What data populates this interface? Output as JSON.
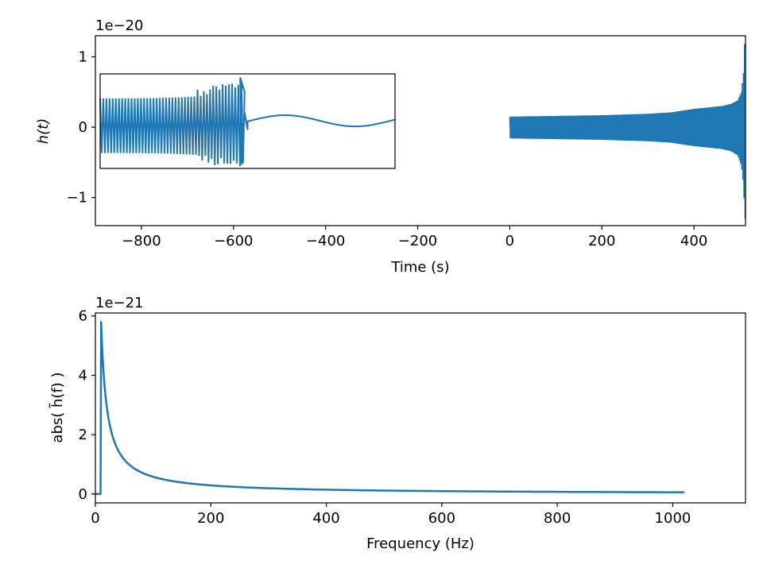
{
  "chart_data": [
    {
      "type": "line",
      "title": "",
      "xlabel": "Time (s)",
      "ylabel": "h(t)",
      "offset_label": "1e−20",
      "xlim": [
        -900,
        512
      ],
      "ylim": [
        -1.4,
        1.3
      ],
      "xticks": [
        -800,
        -600,
        -400,
        -200,
        0,
        200,
        400
      ],
      "xtick_labels": [
        "−800",
        "−600",
        "−400",
        "−200",
        "0",
        "200",
        "400"
      ],
      "yticks": [
        -1,
        0,
        1
      ],
      "ytick_labels": [
        "−1",
        "0",
        "1"
      ],
      "series_color": "#1f77b4",
      "envelope": {
        "t": [
          0,
          100,
          200,
          300,
          350,
          380,
          400,
          430,
          460,
          480,
          495,
          503,
          508,
          510,
          512
        ],
        "upper": [
          0.15,
          0.16,
          0.17,
          0.19,
          0.21,
          0.24,
          0.26,
          0.28,
          0.3,
          0.33,
          0.38,
          0.5,
          0.8,
          1.2,
          1.2
        ],
        "lower": [
          -0.16,
          -0.17,
          -0.18,
          -0.2,
          -0.22,
          -0.25,
          -0.27,
          -0.29,
          -0.31,
          -0.34,
          -0.4,
          -0.55,
          -0.85,
          -1.3,
          -1.3
        ]
      },
      "inset": {
        "description_series": "zoom of merger waveform",
        "xlim": [
          0,
          1
        ],
        "ylim": [
          -0.6,
          0.75
        ],
        "oscillation_end": 0.5,
        "peak_amp": 0.7,
        "ringdown_min": -0.55
      }
    },
    {
      "type": "line",
      "title": "",
      "xlabel": "Frequency (Hz)",
      "ylabel": "abs( h̃(f) )",
      "offset_label": "1e−21",
      "xlim": [
        0,
        1126
      ],
      "ylim": [
        -0.3,
        6.1
      ],
      "xticks": [
        0,
        200,
        400,
        600,
        800,
        1000
      ],
      "xtick_labels": [
        "0",
        "200",
        "400",
        "600",
        "800",
        "1000"
      ],
      "yticks": [
        0,
        2,
        4,
        6
      ],
      "ytick_labels": [
        "0",
        "2",
        "4",
        "6"
      ],
      "series_color": "#1f77b4",
      "x": [
        0,
        9,
        10,
        12,
        15,
        20,
        30,
        40,
        60,
        80,
        100,
        150,
        200,
        300,
        400,
        500,
        600,
        700,
        800,
        900,
        1000,
        1024
      ],
      "y": [
        0,
        0,
        5.8,
        5.3,
        4.1,
        3.1,
        2.06,
        1.55,
        1.03,
        0.77,
        0.62,
        0.41,
        0.31,
        0.21,
        0.155,
        0.124,
        0.1,
        0.088,
        0.077,
        0.069,
        0.062,
        0.06
      ]
    }
  ]
}
